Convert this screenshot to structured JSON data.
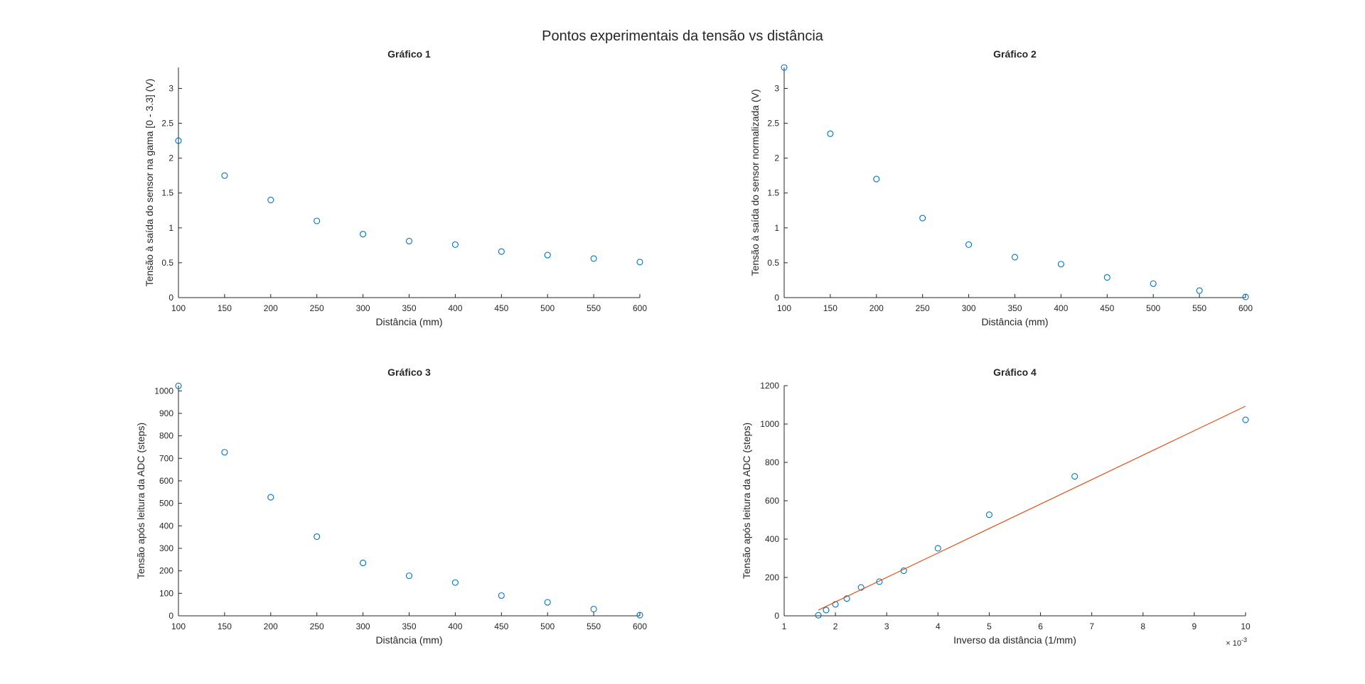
{
  "figure": {
    "title": "Pontos experimentais da tensão vs distância",
    "colors": {
      "marker": "#0072BD",
      "fit_line": "#D95319",
      "axis": "#262626"
    }
  },
  "chart_data": [
    {
      "type": "scatter",
      "title": "Gráfico 1",
      "xlabel": "Distância (mm)",
      "ylabel": "Tensão à saída do sensor na gama [0 - 3.3] (V)",
      "xlim": [
        100,
        600
      ],
      "ylim": [
        0,
        3.3
      ],
      "xticks": [
        100,
        150,
        200,
        250,
        300,
        350,
        400,
        450,
        500,
        550,
        600
      ],
      "xtick_labels": [
        "100",
        "150",
        "200",
        "250",
        "300",
        "350",
        "400",
        "450",
        "500",
        "550",
        "600"
      ],
      "yticks": [
        0,
        0.5,
        1,
        1.5,
        2,
        2.5,
        3
      ],
      "ytick_labels": [
        "0",
        "0.5",
        "1",
        "1.5",
        "2",
        "2.5",
        "3"
      ],
      "grid": false,
      "series": [
        {
          "marker": "circle",
          "x": [
            100,
            150,
            200,
            250,
            300,
            350,
            400,
            450,
            500,
            550,
            600
          ],
          "y": [
            2.25,
            1.75,
            1.4,
            1.1,
            0.91,
            0.81,
            0.76,
            0.66,
            0.61,
            0.56,
            0.51
          ]
        }
      ]
    },
    {
      "type": "scatter",
      "title": "Gráfico 2",
      "xlabel": "Distância (mm)",
      "ylabel": "Tensão à saída do sensor normalizada (V)",
      "xlim": [
        100,
        600
      ],
      "ylim": [
        0,
        3.3
      ],
      "xticks": [
        100,
        150,
        200,
        250,
        300,
        350,
        400,
        450,
        500,
        550,
        600
      ],
      "xtick_labels": [
        "100",
        "150",
        "200",
        "250",
        "300",
        "350",
        "400",
        "450",
        "500",
        "550",
        "600"
      ],
      "yticks": [
        0,
        0.5,
        1,
        1.5,
        2,
        2.5,
        3
      ],
      "ytick_labels": [
        "0",
        "0.5",
        "1",
        "1.5",
        "2",
        "2.5",
        "3"
      ],
      "grid": false,
      "series": [
        {
          "marker": "circle",
          "x": [
            100,
            150,
            200,
            250,
            300,
            350,
            400,
            450,
            500,
            550,
            600
          ],
          "y": [
            3.3,
            2.35,
            1.7,
            1.14,
            0.76,
            0.58,
            0.48,
            0.29,
            0.2,
            0.1,
            0.01
          ]
        }
      ]
    },
    {
      "type": "scatter",
      "title": "Gráfico 3",
      "xlabel": "Distância (mm)",
      "ylabel": "Tensão após leitura da ADC (steps)",
      "xlim": [
        100,
        600
      ],
      "ylim": [
        0,
        1023
      ],
      "xticks": [
        100,
        150,
        200,
        250,
        300,
        350,
        400,
        450,
        500,
        550,
        600
      ],
      "xtick_labels": [
        "100",
        "150",
        "200",
        "250",
        "300",
        "350",
        "400",
        "450",
        "500",
        "550",
        "600"
      ],
      "yticks": [
        0,
        100,
        200,
        300,
        400,
        500,
        600,
        700,
        800,
        900,
        1000
      ],
      "ytick_labels": [
        "0",
        "100",
        "200",
        "300",
        "400",
        "500",
        "600",
        "700",
        "800",
        "900",
        "1000"
      ],
      "grid": false,
      "series": [
        {
          "marker": "circle",
          "x": [
            100,
            150,
            200,
            250,
            300,
            350,
            400,
            450,
            500,
            550,
            600
          ],
          "y": [
            1022,
            727,
            527,
            352,
            235,
            178,
            148,
            90,
            60,
            30,
            3
          ]
        }
      ]
    },
    {
      "type": "scatter",
      "title": "Gráfico 4",
      "xlabel": "Inverso da distância (1/mm)",
      "ylabel": "Tensão após leitura da ADC (steps)",
      "xlim": [
        0.001,
        0.01
      ],
      "ylim": [
        0,
        1200
      ],
      "xticks": [
        0.001,
        0.002,
        0.003,
        0.004,
        0.005,
        0.006,
        0.007,
        0.008,
        0.009,
        0.01
      ],
      "xtick_labels": [
        "1",
        "2",
        "3",
        "4",
        "5",
        "6",
        "7",
        "8",
        "9",
        "10"
      ],
      "x_exponent_label": {
        "base": "× 10",
        "exp": "-3"
      },
      "yticks": [
        0,
        200,
        400,
        600,
        800,
        1000,
        1200
      ],
      "ytick_labels": [
        "0",
        "200",
        "400",
        "600",
        "800",
        "1000",
        "1200"
      ],
      "grid": false,
      "series": [
        {
          "marker": "circle",
          "x": [
            0.001667,
            0.001818,
            0.002,
            0.002222,
            0.0025,
            0.002857,
            0.003333,
            0.004,
            0.005,
            0.006667,
            0.01
          ],
          "y": [
            3,
            30,
            60,
            90,
            148,
            178,
            235,
            352,
            527,
            727,
            1022
          ]
        },
        {
          "marker": "none",
          "line": "fit",
          "x": [
            0.001667,
            0.01
          ],
          "y": [
            30,
            1093
          ]
        }
      ]
    }
  ]
}
